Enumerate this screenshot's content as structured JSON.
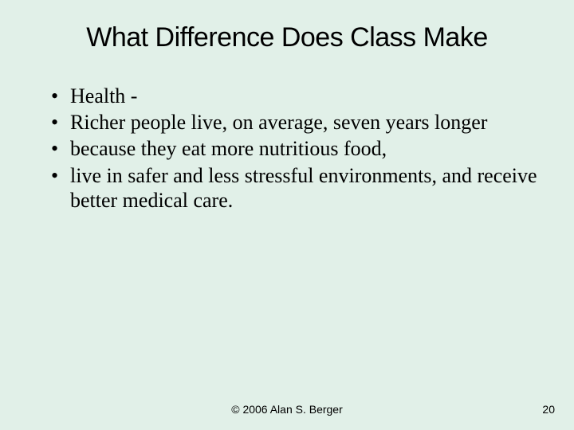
{
  "slide": {
    "title": "What Difference Does Class Make",
    "bullets": [
      "Health -",
      "Richer people live, on average, seven years longer",
      "because they eat more nutritious food,",
      "live in safer and less stressful environments, and receive better medical care."
    ],
    "footer": {
      "copyright": "©  2006  Alan S. Berger",
      "page_number": "20"
    }
  },
  "style": {
    "background_color": "#e1f0e8",
    "title_font": "Arial",
    "title_fontsize": 34,
    "title_color": "#000000",
    "body_font": "Times New Roman",
    "body_fontsize": 26,
    "body_color": "#000000",
    "footer_font": "Arial",
    "footer_fontsize": 14,
    "footer_color": "#000000"
  }
}
